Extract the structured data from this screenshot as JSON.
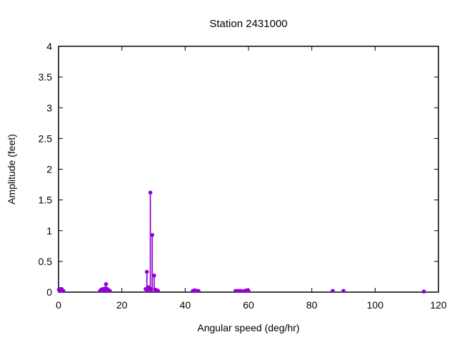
{
  "window": {
    "background_color": "#ffffff"
  },
  "chart_data": {
    "type": "scatter",
    "style": "impulses+points",
    "title": "Station 2431000",
    "xlabel": "Angular speed (deg/hr)",
    "ylabel": "Amplitude (feet)",
    "xlim": [
      0,
      120
    ],
    "ylim": [
      0,
      4
    ],
    "xticks": [
      0,
      20,
      40,
      60,
      80,
      100,
      120
    ],
    "xtick_labels": [
      "0",
      "20",
      "40",
      "60",
      "80",
      "100",
      "120"
    ],
    "yticks": [
      0,
      0.5,
      1,
      1.5,
      2,
      2.5,
      3,
      3.5,
      4
    ],
    "ytick_labels": [
      "0",
      "0.5",
      "1",
      "1.5",
      "2",
      "2.5",
      "3",
      "3.5",
      "4"
    ],
    "grid": false,
    "legend_position": "none",
    "marker_color": "#9400d3",
    "axis_color": "#000000",
    "points": [
      [
        0.1,
        0.04
      ],
      [
        0.5,
        0.05
      ],
      [
        1.0,
        0.05
      ],
      [
        1.5,
        0.02
      ],
      [
        13.1,
        0.02
      ],
      [
        13.5,
        0.04
      ],
      [
        13.9,
        0.05
      ],
      [
        14.3,
        0.03
      ],
      [
        14.7,
        0.06
      ],
      [
        15.0,
        0.13
      ],
      [
        15.4,
        0.05
      ],
      [
        15.8,
        0.03
      ],
      [
        16.2,
        0.02
      ],
      [
        27.5,
        0.05
      ],
      [
        27.9,
        0.33
      ],
      [
        28.3,
        0.08
      ],
      [
        28.6,
        0.06
      ],
      [
        29.0,
        1.62
      ],
      [
        29.3,
        0.05
      ],
      [
        29.6,
        0.93
      ],
      [
        30.2,
        0.27
      ],
      [
        30.6,
        0.04
      ],
      [
        31.0,
        0.03
      ],
      [
        31.4,
        0.02
      ],
      [
        42.4,
        0.02
      ],
      [
        43.0,
        0.03
      ],
      [
        43.6,
        0.02
      ],
      [
        44.2,
        0.02
      ],
      [
        55.9,
        0.02
      ],
      [
        56.8,
        0.02
      ],
      [
        57.6,
        0.02
      ],
      [
        58.7,
        0.02
      ],
      [
        59.5,
        0.03
      ],
      [
        60.0,
        0.02
      ],
      [
        86.6,
        0.02
      ],
      [
        90.0,
        0.02
      ],
      [
        115.4,
        0.01
      ]
    ]
  }
}
